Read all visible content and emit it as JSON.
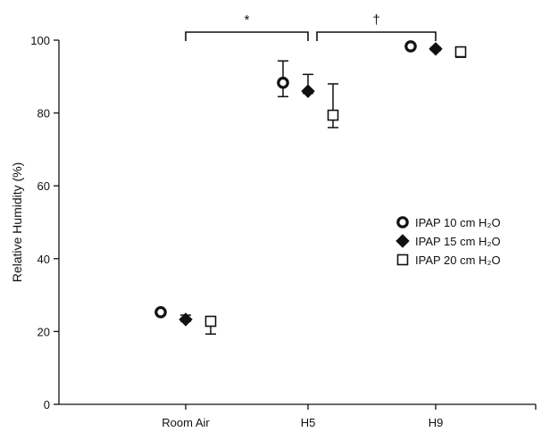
{
  "chart_data": {
    "type": "scatter",
    "title": "",
    "xlabel": "",
    "ylabel": "Relative Humidity (%)",
    "categories": [
      "Room Air",
      "H5",
      "H9"
    ],
    "ylim": [
      0,
      100
    ],
    "yticks": [
      "0",
      "20",
      "40",
      "60",
      "80",
      "100"
    ],
    "legend_position": "right",
    "series": [
      {
        "name": "IPAP 10 cm H₂O",
        "marker": "ring-circle",
        "color": "#111111",
        "values": [
          25.3,
          88.3,
          98.3
        ],
        "error_high": [
          25.8,
          94.3,
          98.9
        ],
        "error_low": [
          24.8,
          84.5,
          97.8
        ]
      },
      {
        "name": "IPAP 15 cm H₂O",
        "marker": "filled-diamond",
        "color": "#111111",
        "values": [
          23.3,
          86.0,
          97.6
        ],
        "error_high": [
          24.5,
          90.6,
          98.0
        ],
        "error_low": [
          22.8,
          85.4,
          97.2
        ]
      },
      {
        "name": "IPAP 20 cm H₂O",
        "marker": "open-square",
        "color": "#111111",
        "values": [
          22.8,
          79.4,
          96.8
        ],
        "error_high": [
          23.5,
          88.0,
          97.3
        ],
        "error_low": [
          19.3,
          76.0,
          95.3
        ]
      }
    ],
    "significance": [
      {
        "from": "Room Air",
        "to": "H5",
        "symbol": "*"
      },
      {
        "from": "H5",
        "to": "H9",
        "symbol": "†"
      }
    ]
  }
}
